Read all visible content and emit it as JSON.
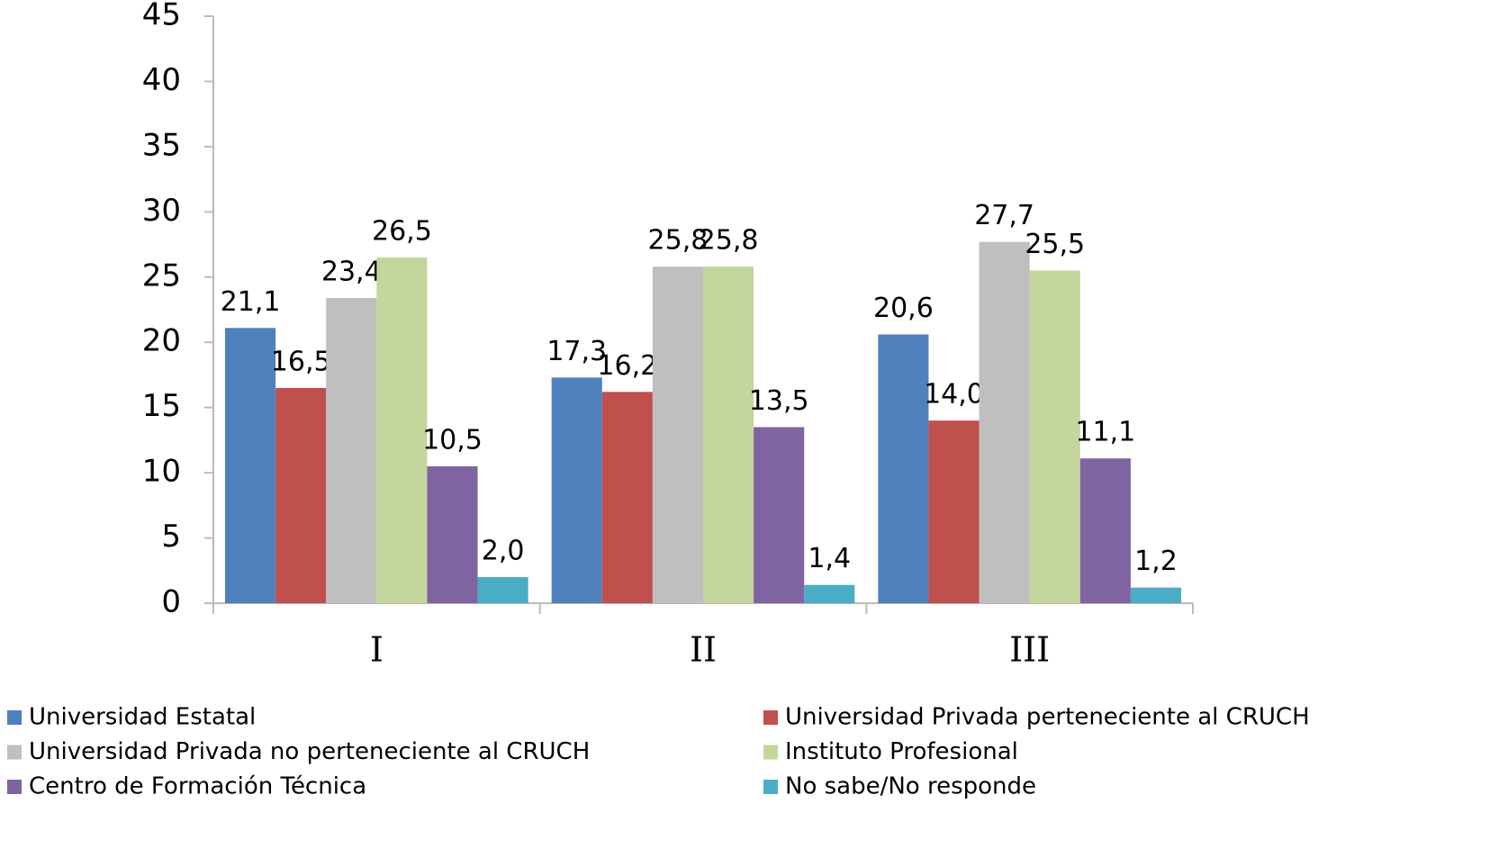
{
  "chart_data": {
    "type": "bar",
    "categories": [
      "I",
      "II",
      "III"
    ],
    "series": [
      {
        "name": "Universidad Estatal",
        "color": "#4f81bd",
        "values": [
          21.1,
          17.3,
          20.6
        ],
        "value_labels": [
          "21,1",
          "17,3",
          "20,6"
        ]
      },
      {
        "name": "Universidad Privada perteneciente al CRUCH",
        "color": "#c0504d",
        "values": [
          16.5,
          16.2,
          14.0
        ],
        "value_labels": [
          "16,5",
          "16,2",
          "14,0"
        ]
      },
      {
        "name": "Universidad Privada no perteneciente al CRUCH",
        "color": "#bfbfbf",
        "values": [
          23.4,
          25.8,
          27.7
        ],
        "value_labels": [
          "23,4",
          "25,8",
          "27,7"
        ]
      },
      {
        "name": "Instituto Profesional",
        "color": "#c3d69b",
        "values": [
          26.5,
          25.8,
          25.5
        ],
        "value_labels": [
          "26,5",
          "25,8",
          "25,5"
        ]
      },
      {
        "name": "Centro de Formación Técnica",
        "color": "#8064a2",
        "values": [
          10.5,
          13.5,
          11.1
        ],
        "value_labels": [
          "10,5",
          "13,5",
          "11,1"
        ]
      },
      {
        "name": "No sabe/No responde",
        "color": "#4bacc6",
        "values": [
          2.0,
          1.4,
          1.2
        ],
        "value_labels": [
          "2,0",
          "1,4",
          "1,2"
        ]
      }
    ],
    "ylim": [
      0,
      45
    ],
    "yticks": [
      0,
      5,
      10,
      15,
      20,
      25,
      30,
      35,
      40,
      45
    ],
    "grid": false,
    "legend": "bottom"
  }
}
